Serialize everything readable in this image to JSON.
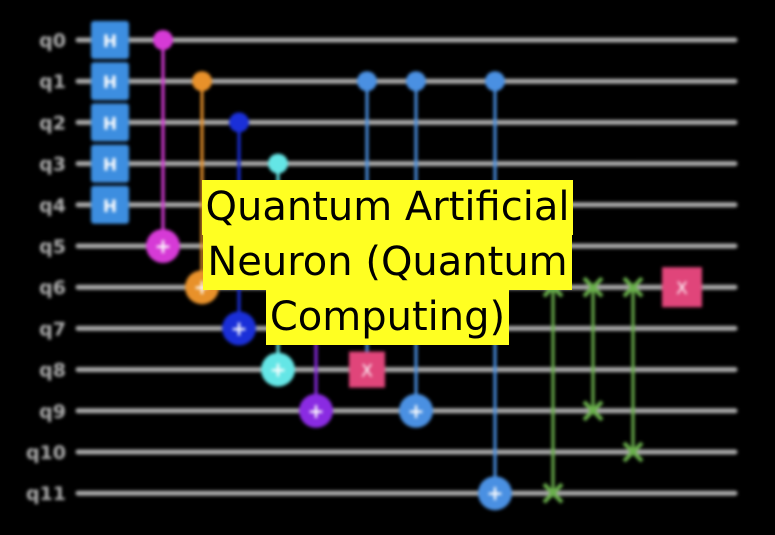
{
  "circuit": {
    "qubits": [
      "q0",
      "q1",
      "q2",
      "q3",
      "q4",
      "q5",
      "q6",
      "q7",
      "q8",
      "q9",
      "q10",
      "q11"
    ],
    "h_gates": [
      0,
      1,
      2,
      3,
      4
    ],
    "h_label": "H",
    "gates": [
      {
        "type": "cnot",
        "control": 0,
        "target": 5,
        "color": "#d63ad6"
      },
      {
        "type": "cnot",
        "control": 1,
        "target": 6,
        "color": "#e8912a"
      },
      {
        "type": "cnot",
        "control": 2,
        "target": 7,
        "color": "#1a2fd8"
      },
      {
        "type": "cnot",
        "control": 3,
        "target": 8,
        "color": "#64e6e6"
      },
      {
        "type": "cnot",
        "control": 4,
        "target": 9,
        "color": "#8a2be2"
      },
      {
        "type": "cx_x",
        "control": 1,
        "target": 8,
        "color": "#4a90e2",
        "x_color": "#e0457a"
      },
      {
        "type": "cnot",
        "control": 1,
        "target": 9,
        "color": "#4a90e2"
      },
      {
        "type": "cnot",
        "control": 1,
        "target": 11,
        "color": "#4a90e2"
      },
      {
        "type": "swap",
        "q1": 6,
        "q2": 11,
        "color": "#6ab04c"
      },
      {
        "type": "swap",
        "q1": 6,
        "q2": 9,
        "color": "#6ab04c"
      },
      {
        "type": "swap",
        "q1": 6,
        "q2": 10,
        "color": "#6ab04c"
      },
      {
        "type": "x",
        "target": 6,
        "color": "#e0457a"
      }
    ],
    "x_label": "X",
    "plus_label": "+",
    "colors": {
      "wire": "#a9a9a9",
      "h_gate": "#3d8ee0",
      "label": "#b0b0b0"
    }
  },
  "title": {
    "line1": "Quantum Artificial",
    "line2": "Neuron (Quantum",
    "line3": "Computing)"
  },
  "colors": {
    "banner_bg": "#ffff22",
    "banner_text": "#000000",
    "background": "#000000"
  }
}
